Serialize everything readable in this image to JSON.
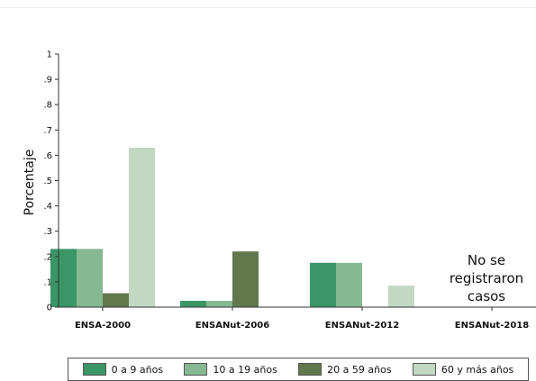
{
  "chart_data": {
    "type": "bar",
    "title": "",
    "xlabel": "",
    "ylabel": "Porcentaje",
    "ylim": [
      0,
      1
    ],
    "yticks": [
      {
        "value": 0,
        "label": "0"
      },
      {
        "value": 0.1,
        "label": ".1"
      },
      {
        "value": 0.2,
        "label": ".2"
      },
      {
        "value": 0.3,
        "label": ".3"
      },
      {
        "value": 0.4,
        "label": ".4"
      },
      {
        "value": 0.5,
        "label": ".5"
      },
      {
        "value": 0.6,
        "label": ".6"
      },
      {
        "value": 0.7,
        "label": ".7"
      },
      {
        "value": 0.8,
        "label": ".8"
      },
      {
        "value": 0.9,
        "label": ".9"
      },
      {
        "value": 1,
        "label": "1"
      }
    ],
    "categories": [
      "ENSA-2000",
      "ENSANut-2006",
      "ENSANut-2012",
      "ENSANut-2018"
    ],
    "series": [
      {
        "name": "0 a 9 años",
        "color": "#3a9667",
        "values": [
          0.23,
          0.025,
          0.175,
          null
        ]
      },
      {
        "name": "10 a 19 años",
        "color": "#86b892",
        "values": [
          0.23,
          0.025,
          0.175,
          null
        ]
      },
      {
        "name": "20 a 59 años",
        "color": "#61784c",
        "values": [
          0.055,
          0.22,
          null,
          null
        ]
      },
      {
        "name": "60 y más años",
        "color": "#c2d8c3",
        "values": [
          0.63,
          null,
          0.085,
          null
        ]
      }
    ],
    "annotation": {
      "category": "ENSANut-2018",
      "lines": [
        "No se",
        "registraron",
        "casos"
      ]
    },
    "grid": false,
    "legend_position": "bottom"
  }
}
